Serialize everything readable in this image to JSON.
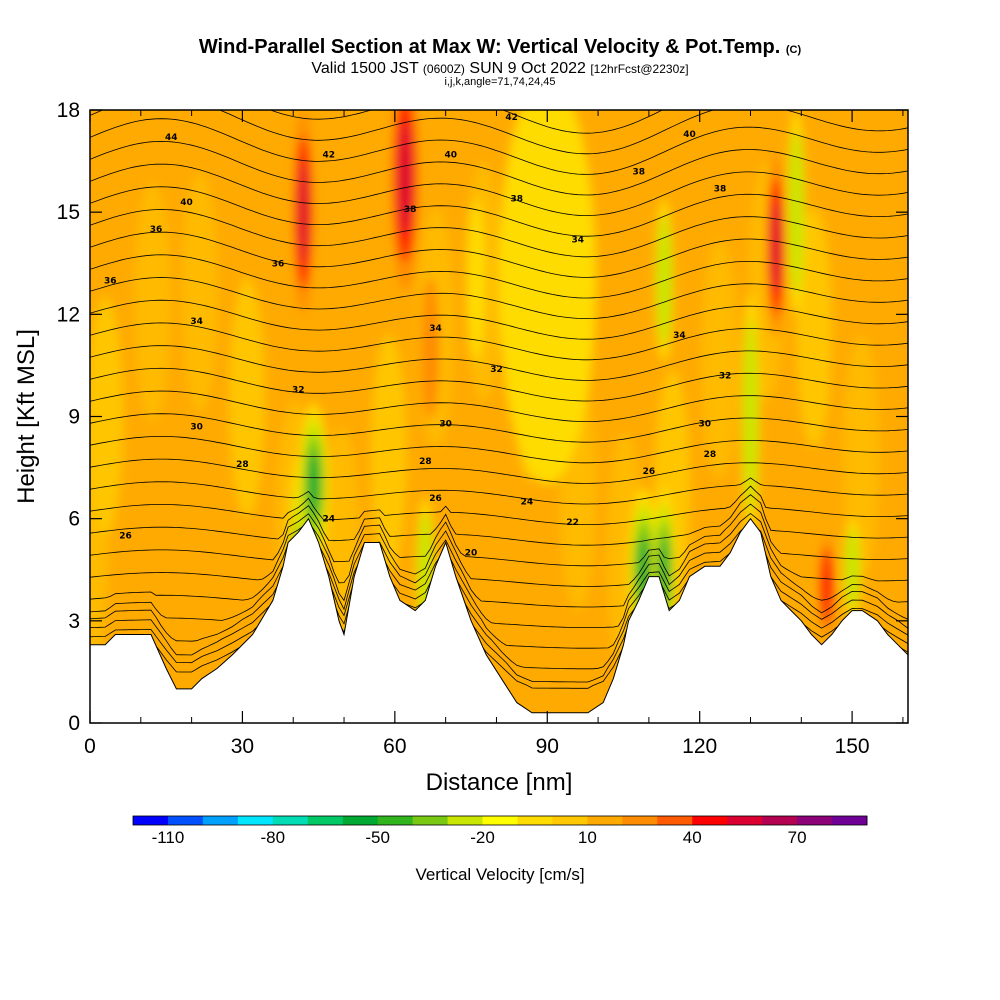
{
  "header": {
    "title_main": "Wind-Parallel Section at Max W: Vertical Velocity & Pot.Temp.",
    "title_units": "(C)",
    "valid_a": "Valid 1500 JST",
    "valid_b": "(0600Z)",
    "valid_c": "SUN 9 Oct 2022",
    "valid_d": "[12hrFcst@2230z]",
    "indices": "i,j,k,angle=71,74,24,45"
  },
  "chart_data": {
    "type": "heatmap",
    "xlabel": "Distance [nm]",
    "ylabel": "Height [Kft MSL]",
    "xlim": [
      0,
      161
    ],
    "ylim": [
      0,
      18
    ],
    "x_ticks": [
      0,
      30,
      60,
      90,
      120,
      150
    ],
    "y_ticks": [
      0,
      3,
      6,
      9,
      12,
      15,
      18
    ],
    "colorbar": {
      "title": "Vertical Velocity [cm/s]",
      "range": [
        -120,
        90
      ],
      "step": 10,
      "labels": [
        -110,
        -80,
        -50,
        -20,
        10,
        40,
        70
      ],
      "colors": [
        "#0000ff",
        "#0050ff",
        "#00a0ff",
        "#00e6ff",
        "#00dcb4",
        "#00c864",
        "#00aa32",
        "#32b41e",
        "#78c814",
        "#c8e600",
        "#ffff00",
        "#ffdc00",
        "#ffc800",
        "#ffaa00",
        "#ff8c00",
        "#ff5a00",
        "#ff0000",
        "#dc0032",
        "#b40050",
        "#8c0078",
        "#6e0096"
      ]
    },
    "terrain_kft": [
      [
        0,
        2.3
      ],
      [
        3,
        2.3
      ],
      [
        5,
        2.6
      ],
      [
        12,
        2.6
      ],
      [
        15,
        1.6
      ],
      [
        17,
        1.0
      ],
      [
        20,
        1.0
      ],
      [
        22,
        1.3
      ],
      [
        25,
        1.6
      ],
      [
        28,
        2.0
      ],
      [
        32,
        2.6
      ],
      [
        36,
        3.6
      ],
      [
        38,
        4.6
      ],
      [
        39,
        5.3
      ],
      [
        41,
        5.6
      ],
      [
        43,
        6.0
      ],
      [
        45,
        5.3
      ],
      [
        47,
        4.3
      ],
      [
        49,
        3.0
      ],
      [
        50,
        2.6
      ],
      [
        52,
        4.3
      ],
      [
        54,
        5.3
      ],
      [
        57,
        5.3
      ],
      [
        59,
        4.3
      ],
      [
        61,
        3.6
      ],
      [
        64,
        3.3
      ],
      [
        66,
        3.6
      ],
      [
        68,
        4.6
      ],
      [
        70,
        5.3
      ],
      [
        72,
        4.3
      ],
      [
        75,
        3.0
      ],
      [
        78,
        2.0
      ],
      [
        81,
        1.3
      ],
      [
        84,
        0.6
      ],
      [
        87,
        0.3
      ],
      [
        90,
        0.3
      ],
      [
        94,
        0.3
      ],
      [
        98,
        0.3
      ],
      [
        101,
        0.6
      ],
      [
        103,
        1.3
      ],
      [
        105,
        2.3
      ],
      [
        106,
        3.0
      ],
      [
        108,
        3.6
      ],
      [
        110,
        4.3
      ],
      [
        112,
        4.3
      ],
      [
        114,
        3.3
      ],
      [
        116,
        3.6
      ],
      [
        118,
        4.3
      ],
      [
        121,
        4.6
      ],
      [
        124,
        4.6
      ],
      [
        126,
        5.0
      ],
      [
        128,
        5.6
      ],
      [
        130,
        6.0
      ],
      [
        132,
        5.6
      ],
      [
        134,
        4.3
      ],
      [
        136,
        3.6
      ],
      [
        138,
        3.3
      ],
      [
        140,
        3.0
      ],
      [
        142,
        2.6
      ],
      [
        144,
        2.3
      ],
      [
        146,
        2.6
      ],
      [
        148,
        3.0
      ],
      [
        150,
        3.3
      ],
      [
        152,
        3.3
      ],
      [
        155,
        3.0
      ],
      [
        157,
        2.6
      ],
      [
        159,
        2.3
      ],
      [
        161,
        2.0
      ]
    ],
    "velocity_features": [
      {
        "x": 41,
        "y": 3,
        "w": 1.8,
        "ys": 0.8,
        "a": -45
      },
      {
        "x": 44,
        "y": 7,
        "w": 2.5,
        "ys": 0.4,
        "a": -70
      },
      {
        "x": 42,
        "y": 15,
        "w": 1.6,
        "ys": 0.5,
        "a": 55
      },
      {
        "x": 62,
        "y": 16,
        "w": 2.2,
        "ys": 0.55,
        "a": 65
      },
      {
        "x": 67,
        "y": 11,
        "w": 1.5,
        "ys": 0.35,
        "a": 30
      },
      {
        "x": 84,
        "y": 15,
        "w": 1.8,
        "ys": 0.4,
        "a": -35
      },
      {
        "x": 90,
        "y": 13,
        "w": 8,
        "ys": 1.0,
        "a": -12
      },
      {
        "x": 66,
        "y": 4.5,
        "w": 1.5,
        "ys": 0.35,
        "a": -30
      },
      {
        "x": 109,
        "y": 4.5,
        "w": 2.5,
        "ys": 0.4,
        "a": -75
      },
      {
        "x": 113,
        "y": 4.5,
        "w": 2.0,
        "ys": 0.4,
        "a": -60
      },
      {
        "x": 113,
        "y": 13,
        "w": 1.5,
        "ys": 0.4,
        "a": -25
      },
      {
        "x": 130,
        "y": 9,
        "w": 1.5,
        "ys": 0.6,
        "a": -35
      },
      {
        "x": 135,
        "y": 14,
        "w": 1.6,
        "ys": 0.45,
        "a": 60
      },
      {
        "x": 139,
        "y": 15,
        "w": 1.5,
        "ys": 0.5,
        "a": -30
      },
      {
        "x": 145,
        "y": 4,
        "w": 1.2,
        "ys": 0.25,
        "a": 45
      },
      {
        "x": 150,
        "y": 4.5,
        "w": 1.5,
        "ys": 0.25,
        "a": -25
      },
      {
        "x": 48,
        "y": 3.5,
        "w": 1.2,
        "ys": 0.3,
        "a": 20
      },
      {
        "x": 102,
        "y": 2,
        "w": 1.5,
        "ys": 0.3,
        "a": 20
      },
      {
        "x": 76,
        "y": 13,
        "w": 1.5,
        "ys": 0.4,
        "a": -22
      }
    ],
    "potential_temperature_labels": [
      {
        "text": "44",
        "x": 16,
        "y": 17.2
      },
      {
        "text": "42",
        "x": 47,
        "y": 16.7
      },
      {
        "text": "42",
        "x": 83,
        "y": 17.8
      },
      {
        "text": "40",
        "x": 19,
        "y": 15.3
      },
      {
        "text": "40",
        "x": 71,
        "y": 16.7
      },
      {
        "text": "40",
        "x": 118,
        "y": 17.3
      },
      {
        "text": "38",
        "x": 108,
        "y": 16.2
      },
      {
        "text": "38",
        "x": 63,
        "y": 15.1
      },
      {
        "text": "38",
        "x": 84,
        "y": 15.4
      },
      {
        "text": "38",
        "x": 124,
        "y": 15.7
      },
      {
        "text": "36",
        "x": 13,
        "y": 14.5
      },
      {
        "text": "36",
        "x": 37,
        "y": 13.5
      },
      {
        "text": "36",
        "x": 4,
        "y": 13.0
      },
      {
        "text": "34",
        "x": 96,
        "y": 14.2
      },
      {
        "text": "34",
        "x": 21,
        "y": 11.8
      },
      {
        "text": "34",
        "x": 68,
        "y": 11.6
      },
      {
        "text": "34",
        "x": 116,
        "y": 11.4
      },
      {
        "text": "32",
        "x": 41,
        "y": 9.8
      },
      {
        "text": "32",
        "x": 80,
        "y": 10.4
      },
      {
        "text": "32",
        "x": 125,
        "y": 10.2
      },
      {
        "text": "30",
        "x": 21,
        "y": 8.7
      },
      {
        "text": "30",
        "x": 70,
        "y": 8.8
      },
      {
        "text": "30",
        "x": 121,
        "y": 8.8
      },
      {
        "text": "28",
        "x": 30,
        "y": 7.6
      },
      {
        "text": "28",
        "x": 66,
        "y": 7.7
      },
      {
        "text": "28",
        "x": 122,
        "y": 7.9
      },
      {
        "text": "26",
        "x": 68,
        "y": 6.6
      },
      {
        "text": "26",
        "x": 110,
        "y": 7.4
      },
      {
        "text": "26",
        "x": 7,
        "y": 5.5
      },
      {
        "text": "24",
        "x": 47,
        "y": 6.0
      },
      {
        "text": "24",
        "x": 86,
        "y": 6.5
      },
      {
        "text": "22",
        "x": 95,
        "y": 5.9
      },
      {
        "text": "20",
        "x": 75,
        "y": 5.0
      }
    ]
  }
}
